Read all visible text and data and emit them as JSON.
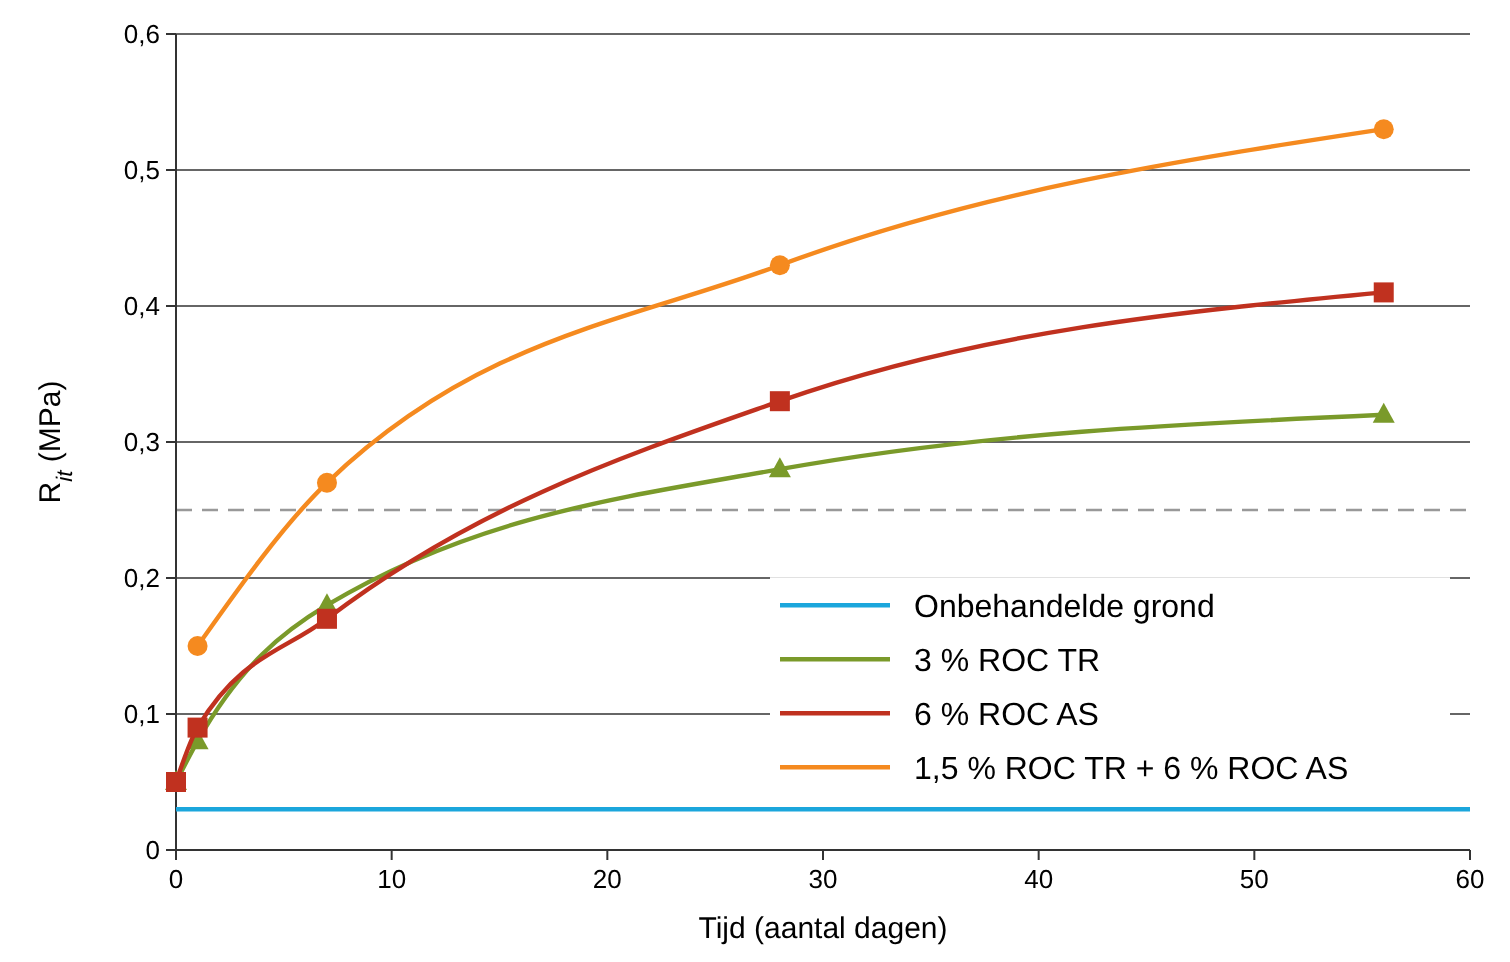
{
  "chart_data": {
    "type": "line",
    "xlabel": "Tijd (aantal dagen)",
    "ylabel": "R$_{it}$ (MPa)",
    "xlim": [
      0,
      60
    ],
    "xticks": [
      0,
      10,
      20,
      30,
      40,
      50,
      60
    ],
    "ylim": [
      0,
      0.6
    ],
    "yticks": [
      0,
      {
        "value": 0.1,
        "label": "0,1"
      },
      {
        "value": 0.2,
        "label": "0,2"
      },
      {
        "value": 0.3,
        "label": "0,3"
      },
      {
        "value": 0.4,
        "label": "0,4"
      },
      {
        "value": 0.5,
        "label": "0,5"
      },
      {
        "value": 0.6,
        "label": "0,6"
      }
    ],
    "grid": "y",
    "legend": "bottom right",
    "line_style": "solid",
    "ref_lines": [
      {
        "axis": "y",
        "value": 0.25,
        "color": "#999999",
        "line_style": "dashed"
      }
    ],
    "series": [
      {
        "name": "Onbehandelde grond",
        "color": "#1ba6dc",
        "x": [
          0,
          60
        ],
        "values": [
          0.03,
          0.03
        ],
        "marker": "none"
      },
      {
        "name": "3 % ROC TR",
        "color": "#7a9a2a",
        "x": [
          0,
          1,
          7,
          28,
          56
        ],
        "values": [
          0.05,
          0.08,
          0.18,
          0.28,
          0.32
        ],
        "marker": "triangle"
      },
      {
        "name": "6 % ROC AS",
        "color": "#c0311f",
        "x": [
          0,
          1,
          7,
          28,
          56
        ],
        "values": [
          0.05,
          0.09,
          0.17,
          0.33,
          0.41
        ],
        "marker": "square"
      },
      {
        "name": "1,5 % ROC TR + 6 % ROC AS",
        "color": "#f58a1f",
        "x": [
          1,
          7,
          28,
          56
        ],
        "values": [
          0.15,
          0.27,
          0.43,
          0.53
        ],
        "marker": "circle"
      }
    ]
  }
}
